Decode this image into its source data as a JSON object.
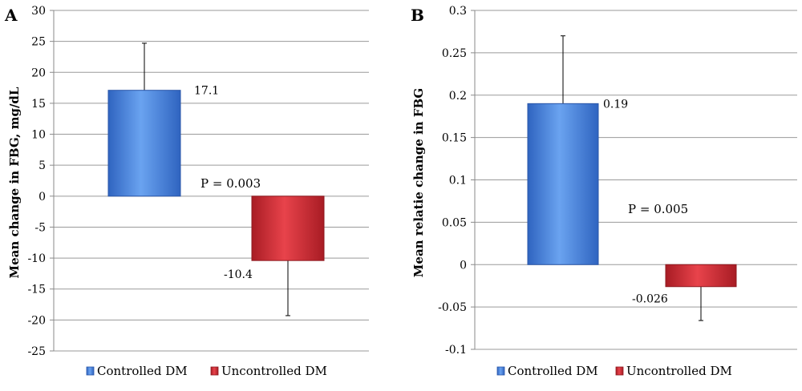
{
  "chart_data": [
    {
      "panel_letter": "A",
      "type": "bar",
      "ylabel": "Mean change in FBG, mg/dL",
      "ylim": [
        -25,
        30
      ],
      "yticks": [
        30,
        25,
        20,
        15,
        10,
        5,
        0,
        -5,
        -10,
        -15,
        -20,
        -25
      ],
      "ytick_labels": [
        "30",
        "25",
        "20",
        "15",
        "10",
        "5",
        "0",
        "-5",
        "-10",
        "-15",
        "-20",
        "-25"
      ],
      "grid": true,
      "legend_position": "bottom",
      "series": [
        {
          "name": "Controlled DM",
          "value": 17.1,
          "value_label": "17.1",
          "error": 7.6,
          "color": "#3a78d6"
        },
        {
          "name": "Uncontrolled DM",
          "value": -10.4,
          "value_label": "-10.4",
          "error": 8.9,
          "color": "#c4262e"
        }
      ],
      "annotation": "P = 0.003"
    },
    {
      "panel_letter": "B",
      "type": "bar",
      "ylabel": "Mean relatie change in FBG",
      "ylim": [
        -0.1,
        0.3
      ],
      "yticks": [
        0.3,
        0.25,
        0.2,
        0.15,
        0.1,
        0.05,
        0,
        -0.05,
        -0.1
      ],
      "ytick_labels": [
        "0.3",
        "0.25",
        "0.2",
        "0.15",
        "0.1",
        "0.05",
        "0",
        "-0.05",
        "-0.1"
      ],
      "grid": true,
      "legend_position": "bottom",
      "series": [
        {
          "name": "Controlled DM",
          "value": 0.19,
          "value_label": "0.19",
          "error": 0.08,
          "color": "#3a78d6"
        },
        {
          "name": "Uncontrolled DM",
          "value": -0.026,
          "value_label": "-0.026",
          "error": 0.04,
          "color": "#c4262e"
        }
      ],
      "annotation": "P = 0.005"
    }
  ]
}
